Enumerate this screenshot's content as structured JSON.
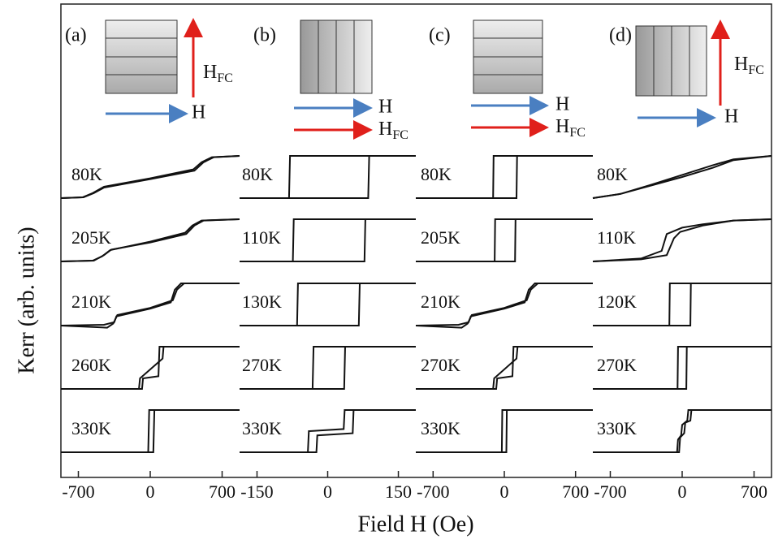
{
  "chart_data": {
    "type": "line",
    "xlabel": "Field H (Oe)",
    "ylabel": "Kerr (arb. units)",
    "color": "#111111",
    "panels": [
      {
        "label": "(a)",
        "xlim": [
          -870,
          870
        ],
        "xticks": [
          -700,
          0,
          700
        ],
        "inset": {
          "field": "H",
          "cooling": {
            "main": "H",
            "sub": "FC"
          }
        },
        "loops": [
          {
            "label": "80K",
            "branches": [
              {
                "x": [
                  -870,
                  -650,
                  -550,
                  -450,
                  0,
                  430,
                  520,
                  620,
                  870
                ],
                "y": [
                  0,
                  0.02,
                  0.12,
                  0.25,
                  0.45,
                  0.65,
                  0.85,
                  0.97,
                  1
                ]
              },
              {
                "x": [
                  870,
                  600,
                  500,
                  420,
                  0,
                  -450,
                  -560,
                  -660,
                  -870
                ],
                "y": [
                  1,
                  0.97,
                  0.85,
                  0.68,
                  0.47,
                  0.27,
                  0.12,
                  0.02,
                  0
                ]
              }
            ]
          },
          {
            "label": "205K",
            "branches": [
              {
                "x": [
                  -870,
                  -550,
                  -450,
                  -380,
                  0,
                  350,
                  430,
                  520,
                  870
                ],
                "y": [
                  0,
                  0.02,
                  0.15,
                  0.28,
                  0.45,
                  0.65,
                  0.85,
                  0.97,
                  1
                ]
              },
              {
                "x": [
                  870,
                  500,
                  410,
                  340,
                  0,
                  -390,
                  -470,
                  -560,
                  -870
                ],
                "y": [
                  1,
                  0.97,
                  0.85,
                  0.68,
                  0.47,
                  0.27,
                  0.12,
                  0.02,
                  0
                ]
              }
            ]
          },
          {
            "label": "210K",
            "branches": [
              {
                "x": [
                  -870,
                  -450,
                  -350,
                  -330,
                  0,
                  200,
                  240,
                  300,
                  870
                ],
                "y": [
                  0,
                  0.02,
                  0.08,
                  0.22,
                  0.4,
                  0.55,
                  0.85,
                  1,
                  1
                ]
              },
              {
                "x": [
                  870,
                  330,
                  260,
                  220,
                  0,
                  -320,
                  -360,
                  -420,
                  -870
                ],
                "y": [
                  1,
                  1,
                  0.85,
                  0.6,
                  0.42,
                  0.25,
                  0.05,
                  -0.05,
                  0
                ]
              }
            ]
          },
          {
            "label": "260K",
            "branches": [
              {
                "x": [
                  -870,
                  -80,
                  -70,
                  80,
                  90,
                  870
                ],
                "y": [
                  0,
                  0,
                  0.25,
                  0.3,
                  1,
                  1
                ]
              },
              {
                "x": [
                  870,
                  130,
                  120,
                  -100,
                  -110,
                  -870
                ],
                "y": [
                  1,
                  1,
                  0.72,
                  0.25,
                  0,
                  0
                ]
              }
            ]
          },
          {
            "label": "330K",
            "branches": [
              {
                "x": [
                  -870,
                  30,
                  40,
                  870
                ],
                "y": [
                  0,
                  0,
                  1,
                  1
                ]
              },
              {
                "x": [
                  870,
                  -10,
                  -20,
                  -870
                ],
                "y": [
                  1,
                  1,
                  0,
                  0
                ]
              }
            ]
          }
        ]
      },
      {
        "label": "(b)",
        "xlim": [
          -187,
          187
        ],
        "xticks": [
          -150,
          0,
          150
        ],
        "inset": {
          "field": "H",
          "cooling": {
            "main": "H",
            "sub": "FC"
          }
        },
        "loops": [
          {
            "label": "80K",
            "branches": [
              {
                "x": [
                  -187,
                  86,
                  88,
                  187
                ],
                "y": [
                  0,
                  0,
                  1,
                  1
                ]
              },
              {
                "x": [
                  187,
                  -80,
                  -82,
                  -187
                ],
                "y": [
                  1,
                  1,
                  0,
                  0
                ]
              }
            ]
          },
          {
            "label": "110K",
            "branches": [
              {
                "x": [
                  -187,
                  78,
                  80,
                  187
                ],
                "y": [
                  0,
                  0,
                  1,
                  1
                ]
              },
              {
                "x": [
                  187,
                  -72,
                  -74,
                  -187
                ],
                "y": [
                  1,
                  1,
                  0,
                  0
                ]
              }
            ]
          },
          {
            "label": "130K",
            "branches": [
              {
                "x": [
                  -187,
                  66,
                  68,
                  187
                ],
                "y": [
                  0,
                  0,
                  1,
                  1
                ]
              },
              {
                "x": [
                  187,
                  -63,
                  -65,
                  -187
                ],
                "y": [
                  1,
                  1,
                  0,
                  0
                ]
              }
            ]
          },
          {
            "label": "270K",
            "branches": [
              {
                "x": [
                  -187,
                  35,
                  37,
                  187
                ],
                "y": [
                  0,
                  0,
                  1,
                  1
                ]
              },
              {
                "x": [
                  187,
                  -30,
                  -32,
                  -187
                ],
                "y": [
                  1,
                  1,
                  0,
                  0
                ]
              }
            ]
          },
          {
            "label": "330K",
            "branches": [
              {
                "x": [
                  -187,
                  -24,
                  -22,
                  53,
                  55,
                  187
                ],
                "y": [
                  0,
                  0,
                  0.4,
                  0.45,
                  1,
                  1
                ]
              },
              {
                "x": [
                  187,
                  36,
                  34,
                  -40,
                  -42,
                  -187
                ],
                "y": [
                  1,
                  1,
                  0.55,
                  0.5,
                  0,
                  0
                ]
              }
            ]
          }
        ]
      },
      {
        "label": "(c)",
        "xlim": [
          -870,
          870
        ],
        "xticks": [
          -700,
          0,
          700
        ],
        "inset": {
          "field": "H",
          "cooling": {
            "main": "H",
            "sub": "FC"
          }
        },
        "loops": [
          {
            "label": "80K",
            "branches": [
              {
                "x": [
                  -870,
                  120,
                  125,
                  870
                ],
                "y": [
                  0,
                  0,
                  1,
                  1
                ]
              },
              {
                "x": [
                  870,
                  -105,
                  -110,
                  -870
                ],
                "y": [
                  1,
                  1,
                  0,
                  0
                ]
              }
            ]
          },
          {
            "label": "205K",
            "branches": [
              {
                "x": [
                  -870,
                  105,
                  110,
                  870
                ],
                "y": [
                  0,
                  0,
                  1,
                  1
                ]
              },
              {
                "x": [
                  870,
                  -90,
                  -95,
                  -870
                ],
                "y": [
                  1,
                  1,
                  0,
                  0
                ]
              }
            ]
          },
          {
            "label": "210K",
            "branches": [
              {
                "x": [
                  -870,
                  -450,
                  -350,
                  -330,
                  0,
                  200,
                  240,
                  300,
                  870
                ],
                "y": [
                  0,
                  0.02,
                  0.08,
                  0.22,
                  0.4,
                  0.55,
                  0.85,
                  1,
                  1
                ]
              },
              {
                "x": [
                  870,
                  330,
                  260,
                  220,
                  0,
                  -320,
                  -360,
                  -420,
                  -870
                ],
                "y": [
                  1,
                  1,
                  0.85,
                  0.6,
                  0.42,
                  0.25,
                  0.05,
                  -0.05,
                  0
                ]
              }
            ]
          },
          {
            "label": "270K",
            "branches": [
              {
                "x": [
                  -870,
                  -80,
                  -70,
                  80,
                  90,
                  870
                ],
                "y": [
                  0,
                  0,
                  0.25,
                  0.3,
                  1,
                  1
                ]
              },
              {
                "x": [
                  870,
                  130,
                  120,
                  -100,
                  -110,
                  -870
                ],
                "y": [
                  1,
                  1,
                  0.72,
                  0.25,
                  0,
                  0
                ]
              }
            ]
          },
          {
            "label": "330K",
            "branches": [
              {
                "x": [
                  -870,
                  20,
                  25,
                  870
                ],
                "y": [
                  0,
                  0,
                  1,
                  1
                ]
              },
              {
                "x": [
                  870,
                  -20,
                  -25,
                  -870
                ],
                "y": [
                  1,
                  1,
                  0,
                  0
                ]
              }
            ]
          }
        ]
      },
      {
        "label": "(d)",
        "xlim": [
          -870,
          870
        ],
        "xticks": [
          -700,
          0,
          700
        ],
        "inset": {
          "field": "H",
          "cooling": {
            "main": "H",
            "sub": "FC"
          }
        },
        "loops": [
          {
            "label": "80K",
            "branches": [
              {
                "x": [
                  -870,
                  -600,
                  -300,
                  0,
                  300,
                  500,
                  870
                ],
                "y": [
                  0,
                  0.1,
                  0.3,
                  0.5,
                  0.72,
                  0.9,
                  1
                ]
              },
              {
                "x": [
                  870,
                  500,
                  300,
                  0,
                  -300,
                  -600,
                  -870
                ],
                "y": [
                  1,
                  0.92,
                  0.78,
                  0.55,
                  0.32,
                  0.1,
                  0
                ]
              }
            ]
          },
          {
            "label": "110K",
            "branches": [
              {
                "x": [
                  -870,
                  -400,
                  -150,
                  -80,
                  -20,
                  200,
                  500,
                  870
                ],
                "y": [
                  0,
                  0.05,
                  0.15,
                  0.55,
                  0.7,
                  0.85,
                  0.97,
                  1
                ]
              },
              {
                "x": [
                  870,
                  500,
                  200,
                  0,
                  -150,
                  -200,
                  -400,
                  -870
                ],
                "y": [
                  1,
                  0.97,
                  0.88,
                  0.8,
                  0.65,
                  0.25,
                  0.07,
                  0
                ]
              }
            ]
          },
          {
            "label": "120K",
            "branches": [
              {
                "x": [
                  -870,
                  80,
                  85,
                  870
                ],
                "y": [
                  0,
                  0,
                  1,
                  1
                ]
              },
              {
                "x": [
                  870,
                  -120,
                  -125,
                  -870
                ],
                "y": [
                  1,
                  1,
                  0,
                  0
                ]
              }
            ]
          },
          {
            "label": "270K",
            "branches": [
              {
                "x": [
                  -870,
                  40,
                  45,
                  870
                ],
                "y": [
                  0,
                  0,
                  1,
                  1
                ]
              },
              {
                "x": [
                  870,
                  -40,
                  -45,
                  -870
                ],
                "y": [
                  1,
                  1,
                  0,
                  0
                ]
              }
            ]
          },
          {
            "label": "330K",
            "branches": [
              {
                "x": [
                  -870,
                  -30,
                  -20,
                  20,
                  30,
                  80,
                  90,
                  870
                ],
                "y": [
                  0,
                  0,
                  0.35,
                  0.45,
                  0.7,
                  0.75,
                  1,
                  1
                ]
              },
              {
                "x": [
                  870,
                  60,
                  50,
                  0,
                  -10,
                  -40,
                  -50,
                  -870
                ],
                "y": [
                  1,
                  1,
                  0.75,
                  0.65,
                  0.4,
                  0.3,
                  0,
                  0
                ]
              }
            ]
          }
        ]
      }
    ]
  }
}
